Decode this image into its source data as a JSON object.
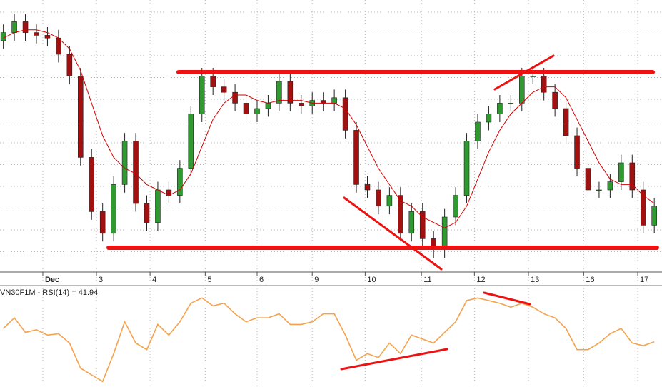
{
  "chart_data": [
    {
      "type": "candlestick",
      "open": [
        85,
        88,
        92,
        88,
        87,
        86,
        80,
        72,
        42,
        22,
        14,
        32,
        48,
        25,
        18,
        30,
        28,
        38,
        58,
        72,
        68,
        66,
        62,
        58,
        60,
        62,
        70,
        62,
        61,
        63,
        62,
        64,
        52,
        32,
        30,
        24,
        28,
        14,
        22,
        12,
        8,
        20,
        28,
        48,
        55,
        58,
        62,
        62,
        72,
        72,
        66,
        60,
        50,
        38,
        30,
        30,
        33,
        40,
        30,
        17
      ],
      "high": [
        91,
        95,
        95,
        91,
        90,
        89,
        83,
        75,
        45,
        25,
        35,
        51,
        51,
        28,
        33,
        33,
        41,
        61,
        75,
        75,
        71,
        69,
        65,
        63,
        65,
        73,
        73,
        65,
        66,
        66,
        67,
        67,
        55,
        35,
        33,
        31,
        31,
        25,
        25,
        15,
        23,
        31,
        51,
        58,
        61,
        65,
        65,
        75,
        75,
        75,
        69,
        63,
        53,
        41,
        33,
        36,
        43,
        43,
        33,
        27
      ],
      "low": [
        82,
        85,
        85,
        84,
        83,
        77,
        69,
        39,
        19,
        11,
        11,
        29,
        22,
        15,
        15,
        25,
        25,
        35,
        55,
        65,
        63,
        59,
        55,
        55,
        57,
        59,
        59,
        58,
        58,
        59,
        59,
        49,
        29,
        27,
        21,
        21,
        11,
        11,
        9,
        5,
        5,
        17,
        25,
        45,
        52,
        55,
        59,
        59,
        69,
        63,
        57,
        47,
        35,
        27,
        27,
        27,
        30,
        27,
        14,
        14
      ],
      "close": [
        88,
        92,
        88,
        87,
        86,
        80,
        72,
        42,
        22,
        14,
        32,
        48,
        25,
        18,
        30,
        28,
        38,
        58,
        72,
        68,
        66,
        62,
        58,
        60,
        62,
        70,
        62,
        61,
        63,
        62,
        64,
        52,
        32,
        30,
        24,
        28,
        14,
        22,
        12,
        8,
        20,
        28,
        48,
        55,
        58,
        62,
        62,
        72,
        72,
        66,
        60,
        50,
        38,
        30,
        30,
        33,
        40,
        30,
        17,
        24
      ],
      "up_color": "#2f9a2f",
      "down_color": "#a31010",
      "ma": {
        "color": "#d40000",
        "values": [
          86,
          88,
          89,
          89,
          88,
          86,
          82,
          74,
          62,
          50,
          42,
          38,
          36,
          32,
          30,
          28,
          30,
          36,
          46,
          56,
          62,
          65,
          65,
          63,
          62,
          63,
          63,
          63,
          62,
          62,
          62,
          60,
          54,
          46,
          38,
          32,
          26,
          24,
          20,
          18,
          16,
          18,
          24,
          34,
          44,
          52,
          58,
          62,
          66,
          68,
          68,
          64,
          56,
          48,
          40,
          34,
          32,
          32,
          28,
          25
        ]
      },
      "ylim": [
        0,
        100
      ],
      "xlim": [
        -0.3,
        59.7
      ],
      "xticks": [
        {
          "value": 3.58,
          "label": "Dec"
        },
        {
          "value": 8.44,
          "label": "3"
        },
        {
          "value": 13.3,
          "label": "4"
        },
        {
          "value": 18.3,
          "label": "5"
        },
        {
          "value": 23.0,
          "label": "6"
        },
        {
          "value": 28.0,
          "label": "9"
        },
        {
          "value": 32.8,
          "label": "10"
        },
        {
          "value": 37.9,
          "label": "11"
        },
        {
          "value": 42.7,
          "label": "12"
        },
        {
          "value": 47.6,
          "label": "13"
        },
        {
          "value": 52.6,
          "label": "16"
        },
        {
          "value": 57.5,
          "label": "17"
        }
      ],
      "grid": true
    },
    {
      "type": "line",
      "label": "VN30F1M - RSI(14) = 41.94",
      "color": "#f5a24d",
      "values": [
        52,
        60,
        49,
        51,
        47,
        48,
        41,
        22,
        17,
        12,
        33,
        57,
        41,
        36,
        55,
        47,
        57,
        71,
        75,
        69,
        71,
        63,
        57,
        60,
        60,
        63,
        55,
        55,
        57,
        63,
        63,
        47,
        28,
        33,
        30,
        41,
        33,
        47,
        44,
        41,
        49,
        57,
        73,
        75,
        73,
        71,
        68,
        71,
        68,
        63,
        60,
        52,
        36,
        36,
        41,
        48,
        52,
        41,
        39,
        41.94
      ],
      "ylim": [
        10,
        80
      ],
      "xlim": [
        -0.3,
        59.7
      ]
    }
  ]
}
